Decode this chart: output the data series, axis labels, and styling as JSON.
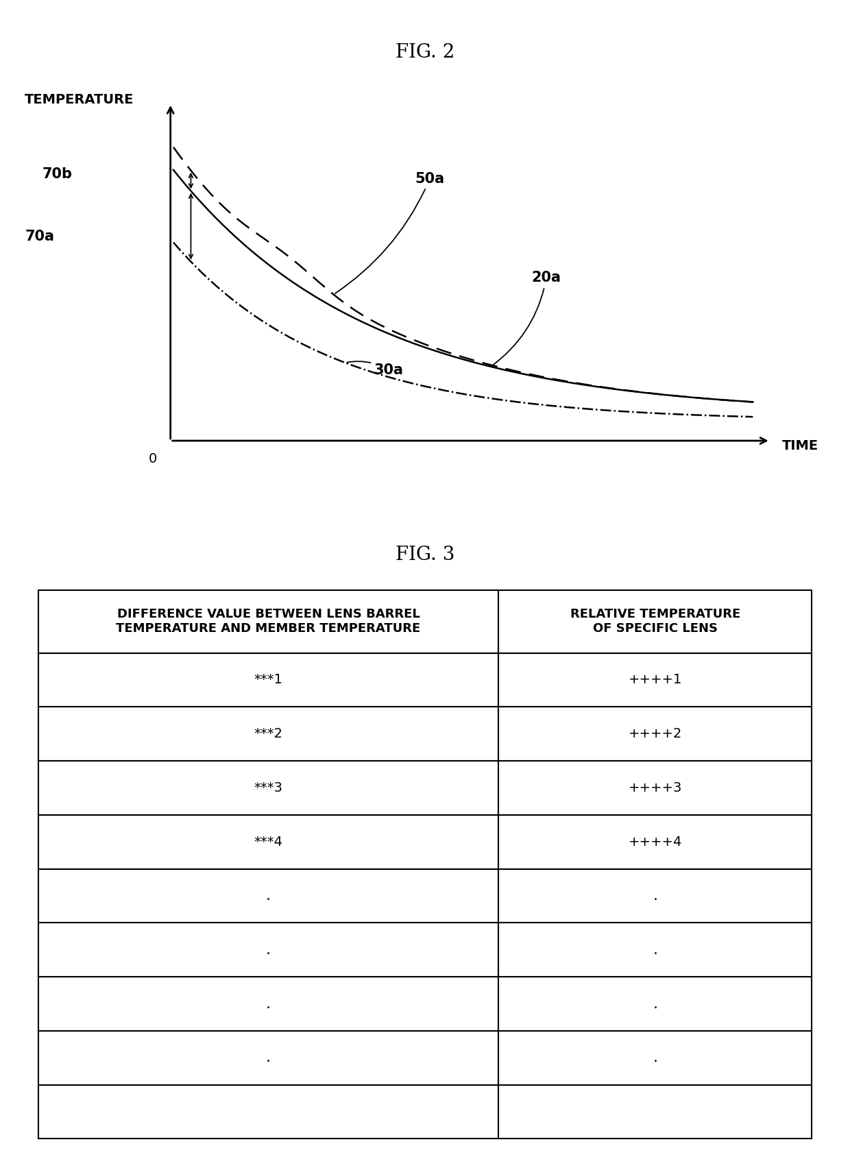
{
  "fig2_title": "FIG. 2",
  "fig3_title": "FIG. 3",
  "ylabel": "TEMPERATURE",
  "xlabel": "TIME",
  "origin_label": "0",
  "label_20a": "20a",
  "label_30a": "30a",
  "label_50a": "50a",
  "label_70a": "70a",
  "label_70b": "70b",
  "table_col1_header_line1": "DIFFERENCE VALUE BETWEEN LENS BARREL",
  "table_col1_header_line2": "TEMPERATURE AND MEMBER TEMPERATURE",
  "table_col2_header_line1": "RELATIVE TEMPERATURE",
  "table_col2_header_line2": "OF SPECIFIC LENS",
  "table_data_col1": [
    "***1",
    "***2",
    "***3",
    "***4",
    ".",
    ".",
    ".",
    ".",
    ""
  ],
  "table_data_col2": [
    "++++1",
    "++++2",
    "++++3",
    "++++4",
    ".",
    ".",
    ".",
    ".",
    ""
  ],
  "bg_color": "#ffffff",
  "line_color": "#000000"
}
